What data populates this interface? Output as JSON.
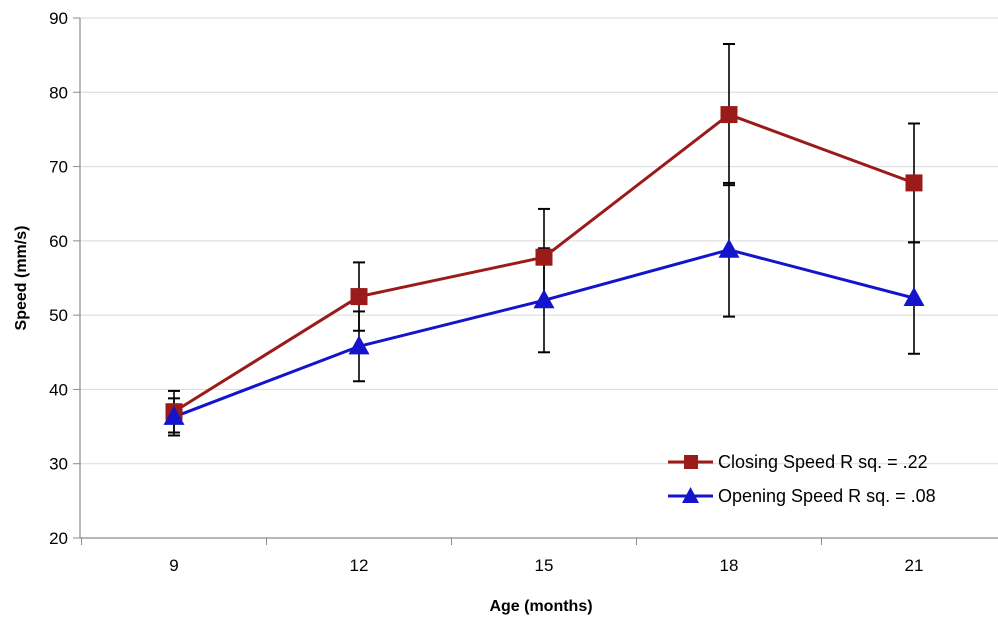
{
  "colors": {
    "background": "#ffffff",
    "grid": "#d9d9d9",
    "axis": "#8c8c8c",
    "error_bar": "#000000"
  },
  "chart_data": {
    "type": "line",
    "title": "",
    "xlabel": "Age (months)",
    "ylabel": "Speed (mm/s)",
    "categories": [
      "9",
      "12",
      "15",
      "18",
      "21"
    ],
    "ylim": [
      20,
      90
    ],
    "yticks": [
      20,
      30,
      40,
      50,
      60,
      70,
      80,
      90
    ],
    "grid": true,
    "legend_position": "bottom-right",
    "series": [
      {
        "name": "Closing Speed R sq. = .22",
        "color": "#9b1b1b",
        "marker": "square",
        "values": [
          37.0,
          52.5,
          57.8,
          77.0,
          67.8
        ],
        "error": [
          2.8,
          4.6,
          6.5,
          9.5,
          8.0
        ]
      },
      {
        "name": "Opening Speed R sq. = .08",
        "color": "#1414cc",
        "marker": "triangle",
        "values": [
          36.3,
          45.8,
          52.0,
          58.8,
          52.3
        ],
        "error": [
          2.5,
          4.7,
          7.0,
          9.0,
          7.5
        ]
      }
    ]
  }
}
